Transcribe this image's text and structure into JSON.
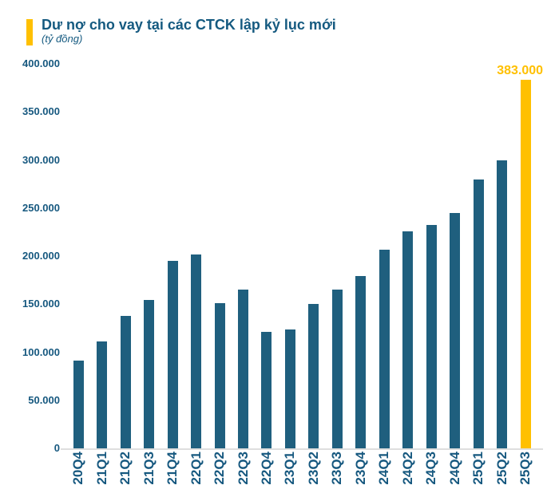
{
  "chart_data": {
    "type": "bar",
    "title": "Dư nợ cho vay tại các CTCK lập kỷ lục mới",
    "subtitle": "(tỷ đồng)",
    "xlabel": "",
    "ylabel": "",
    "ylim": [
      0,
      400000
    ],
    "grid": false,
    "legend": false,
    "y_tick_labels": [
      "400.000",
      "350.000",
      "300.000",
      "250.000",
      "200.000",
      "150.000",
      "100.000",
      "50.000",
      "0"
    ],
    "categories": [
      "20Q4",
      "21Q1",
      "21Q2",
      "21Q3",
      "21Q4",
      "22Q1",
      "22Q2",
      "22Q3",
      "22Q4",
      "23Q1",
      "23Q2",
      "23Q3",
      "23Q4",
      "24Q1",
      "24Q2",
      "24Q3",
      "24Q4",
      "25Q1",
      "25Q2",
      "25Q3"
    ],
    "values": [
      91500,
      111000,
      138000,
      154000,
      195000,
      202000,
      151000,
      165000,
      121500,
      123500,
      150000,
      165000,
      179500,
      207000,
      226000,
      232000,
      245000,
      280000,
      300000,
      383000
    ],
    "highlight_index": 19,
    "highlight_label": "383.000",
    "colors": {
      "bar": "#1f5f7e",
      "highlight": "#ffc000",
      "axis_text": "#16587f",
      "title_text": "#155a80",
      "value_label": "#ffc000",
      "baseline": "#dedede",
      "title_accent": "#ffc000",
      "background": "#ffffff"
    }
  }
}
